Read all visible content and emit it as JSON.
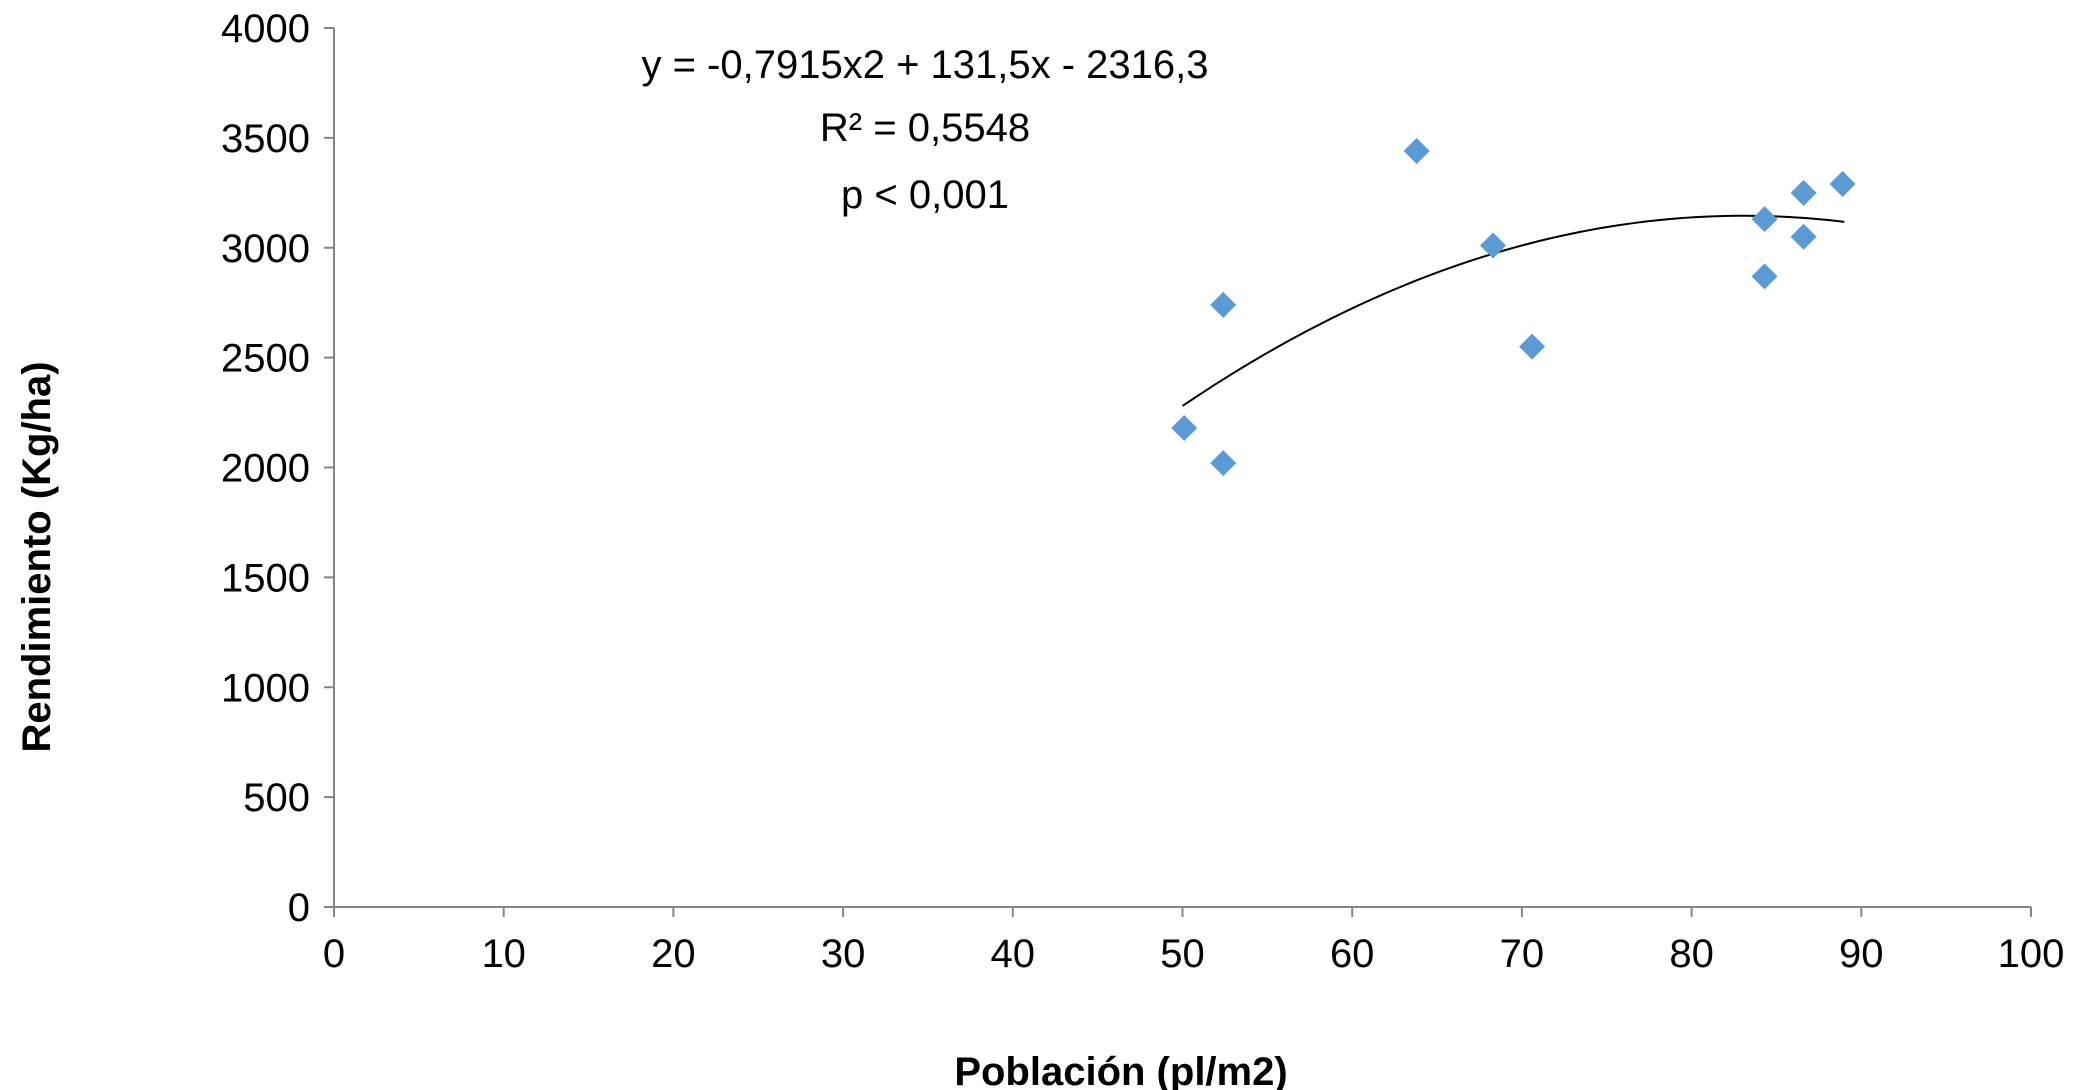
{
  "chart_data": {
    "type": "scatter",
    "title": "",
    "xlabel": "Población (pl/m2)",
    "ylabel": "Rendimiento (Kg/ha)",
    "xlim": [
      0,
      100
    ],
    "ylim": [
      0,
      4000
    ],
    "xticks": [
      "0",
      "10",
      "20",
      "30",
      "40",
      "50",
      "60",
      "70",
      "80",
      "90",
      "100"
    ],
    "yticks": [
      "0",
      "500",
      "1000",
      "1500",
      "2000",
      "2500",
      "3000",
      "3500",
      "4000"
    ],
    "grid": false,
    "legend": "none",
    "series": [
      {
        "marker": "diamond",
        "color": "#5B9BD5",
        "points": [
          {
            "x": 50.1,
            "y": 2180
          },
          {
            "x": 52.4,
            "y": 2740
          },
          {
            "x": 52.4,
            "y": 2020
          },
          {
            "x": 63.8,
            "y": 3440
          },
          {
            "x": 68.3,
            "y": 3010
          },
          {
            "x": 70.6,
            "y": 2550
          },
          {
            "x": 84.3,
            "y": 3130
          },
          {
            "x": 84.3,
            "y": 2870
          },
          {
            "x": 86.6,
            "y": 3250
          },
          {
            "x": 86.6,
            "y": 3050
          },
          {
            "x": 88.9,
            "y": 3290
          }
        ]
      }
    ],
    "trendline": {
      "type": "polynomial",
      "coefficients": {
        "a": -0.7915,
        "b": 131.5,
        "c": -2316.3
      },
      "x_range": [
        50,
        89
      ],
      "color": "#000000"
    },
    "annotations": [
      "y = -0,7915x2 + 131,5x - 2316,3",
      "R² = 0,5548",
      "p < 0,001"
    ]
  }
}
